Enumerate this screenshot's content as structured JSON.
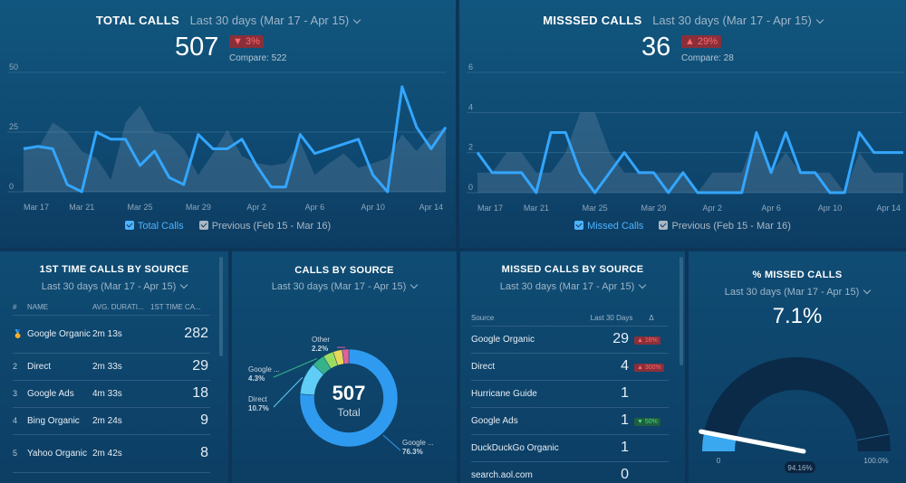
{
  "total_calls": {
    "title": "TOTAL CALLS",
    "range": "Last 30 days (Mar 17 - Apr 15)",
    "value": "507",
    "change": "3%",
    "change_arrow": "▼",
    "compare": "Compare: 522",
    "legend_current": "Total Calls",
    "legend_previous": "Previous (Feb 15 - Mar 16)",
    "chart_data": {
      "type": "line",
      "y_ticks": [
        "50",
        "25",
        "0"
      ],
      "ylim": [
        0,
        50
      ],
      "x_ticks": [
        "Mar 17",
        "Mar 21",
        "Mar 25",
        "Mar 29",
        "Apr 2",
        "Apr 6",
        "Apr 10",
        "Apr 14"
      ],
      "series": [
        {
          "name": "Total Calls",
          "values": [
            18,
            19,
            18,
            3,
            0,
            25,
            22,
            22,
            11,
            17,
            6,
            3,
            24,
            18,
            18,
            22,
            11,
            2,
            2,
            24,
            16,
            18,
            20,
            22,
            7,
            0,
            44,
            27,
            18,
            27
          ]
        },
        {
          "name": "Previous (Feb 15 - Mar 16)",
          "values": [
            19,
            18,
            29,
            25,
            17,
            14,
            5,
            29,
            36,
            25,
            24,
            18,
            7,
            16,
            26,
            15,
            12,
            11,
            12,
            21,
            7,
            12,
            16,
            10,
            12,
            14,
            24,
            17,
            24,
            27
          ]
        }
      ]
    }
  },
  "missed_calls": {
    "title": "MISSSED CALLS",
    "range": "Last 30 days (Mar 17 - Apr 15)",
    "value": "36",
    "change": "29%",
    "change_arrow": "▲",
    "compare": "Compare: 28",
    "legend_current": "Missed Calls",
    "legend_previous": "Previous (Feb 15 - Mar 16)",
    "chart_data": {
      "type": "line",
      "y_ticks": [
        "6",
        "4",
        "2",
        "0"
      ],
      "ylim": [
        0,
        6
      ],
      "x_ticks": [
        "Mar 17",
        "Mar 21",
        "Mar 25",
        "Mar 29",
        "Apr 2",
        "Apr 6",
        "Apr 10",
        "Apr 14"
      ],
      "series": [
        {
          "name": "Missed Calls",
          "values": [
            2,
            1,
            1,
            1,
            0,
            3,
            3,
            1,
            0,
            1,
            2,
            1,
            1,
            0,
            1,
            0,
            0,
            0,
            0,
            3,
            1,
            3,
            1,
            1,
            0,
            0,
            3,
            2,
            2,
            2
          ]
        },
        {
          "name": "Previous (Feb 15 - Mar 16)",
          "values": [
            1,
            1,
            2,
            2,
            1,
            1,
            2,
            4,
            4,
            2,
            1,
            1,
            1,
            1,
            1,
            0,
            1,
            1,
            1,
            3,
            1,
            2,
            1,
            1,
            1,
            0,
            2,
            1,
            1,
            1
          ]
        }
      ]
    }
  },
  "first_time_calls": {
    "title": "1ST TIME CALLS BY SOURCE",
    "range": "Last 30 days (Mar 17 - Apr 15)",
    "columns": [
      "#",
      "NAME",
      "AVG. DURATI...",
      "1ST TIME CA..."
    ],
    "rows": [
      {
        "idx": "🏅",
        "name": "Google Organic",
        "duration": "2m 13s",
        "count": "282"
      },
      {
        "idx": "2",
        "name": "Direct",
        "duration": "2m 33s",
        "count": "29"
      },
      {
        "idx": "3",
        "name": "Google Ads",
        "duration": "4m 33s",
        "count": "18"
      },
      {
        "idx": "4",
        "name": "Bing Organic",
        "duration": "2m 24s",
        "count": "9"
      },
      {
        "idx": "5",
        "name": "Yahoo Organic",
        "duration": "2m 42s",
        "count": "8"
      }
    ]
  },
  "calls_by_source": {
    "title": "CALLS BY SOURCE",
    "range": "Last 30 days (Mar 17 - Apr 15)",
    "total": "507",
    "total_label": "Total",
    "chart_data": {
      "type": "pie",
      "slices": [
        {
          "label": "Google ...",
          "pct": "76.3%",
          "value": 76.3,
          "color": "#2f9bf0"
        },
        {
          "label": "Direct",
          "pct": "10.7%",
          "value": 10.7,
          "color": "#5fcdf5"
        },
        {
          "label": "Google ...",
          "pct": "4.3%",
          "value": 4.3,
          "color": "#36b38a"
        },
        {
          "label": "",
          "pct": "",
          "value": 3.5,
          "color": "#9bdc63"
        },
        {
          "label": "",
          "pct": "",
          "value": 3.0,
          "color": "#e8d75a"
        },
        {
          "label": "Other",
          "pct": "2.2%",
          "value": 2.2,
          "color": "#e0609a"
        }
      ]
    }
  },
  "missed_by_source": {
    "title": "MISSED CALLS BY SOURCE",
    "range": "Last 30 days (Mar 17 - Apr 15)",
    "col_source": "Source",
    "col_last30": "Last 30 Days",
    "col_delta": "Δ",
    "rows": [
      {
        "name": "Google Organic",
        "value": "29",
        "delta": "▲ 16%",
        "delta_type": "red"
      },
      {
        "name": "Direct",
        "value": "4",
        "delta": "▲ 300%",
        "delta_type": "red"
      },
      {
        "name": "Hurricane Guide",
        "value": "1",
        "delta": "",
        "delta_type": ""
      },
      {
        "name": "Google Ads",
        "value": "1",
        "delta": "▼ 50%",
        "delta_type": "green"
      },
      {
        "name": "DuckDuckGo Organic",
        "value": "1",
        "delta": "",
        "delta_type": ""
      },
      {
        "name": "search.aol.com",
        "value": "0",
        "delta": "",
        "delta_type": ""
      }
    ]
  },
  "pct_missed": {
    "title": "% MISSED CALLS",
    "range": "Last 30 days (Mar 17 - Apr 15)",
    "value": "7.1%",
    "gauge_min": "0",
    "gauge_max": "100.0%",
    "gauge_marker": "94.16%",
    "gauge_fraction": 0.071,
    "marker_fraction": 0.9416
  }
}
